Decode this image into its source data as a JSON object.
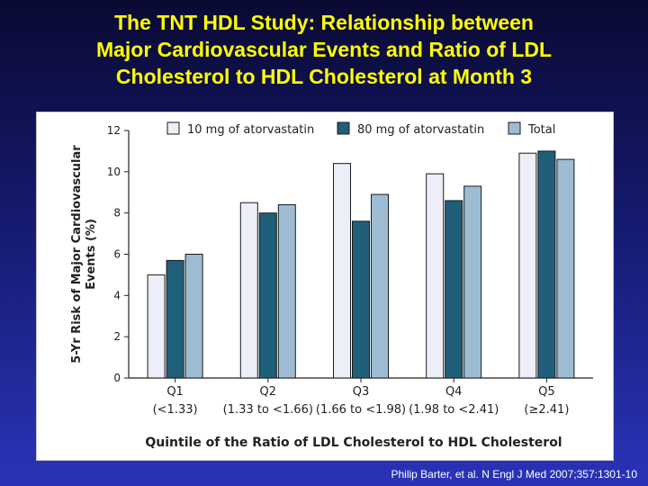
{
  "slide": {
    "title_lines": [
      "The TNT HDL Study: Relationship between",
      "Major Cardiovascular Events and Ratio of LDL",
      "Cholesterol to HDL Cholesterol at Month 3"
    ],
    "citation": "Philip Barter, et al. N Engl J Med 2007;357:1301-10"
  },
  "chart_data": {
    "type": "bar",
    "title": "",
    "xlabel": "Quintile of the Ratio of LDL Cholesterol to HDL Cholesterol",
    "ylabel_lines": [
      "5-Yr Risk of Major Cardiovascular",
      "Events (%)"
    ],
    "ylim": [
      0,
      12
    ],
    "yticks": [
      0,
      2,
      4,
      6,
      8,
      10,
      12
    ],
    "grid": false,
    "legend_position": "top",
    "categories": [
      {
        "name": "Q1",
        "range": "(<1.33)"
      },
      {
        "name": "Q2",
        "range": "(1.33 to <1.66)"
      },
      {
        "name": "Q3",
        "range": "(1.66 to <1.98)"
      },
      {
        "name": "Q4",
        "range": "(1.98 to <2.41)"
      },
      {
        "name": "Q5",
        "range": "(≥2.41)"
      }
    ],
    "series": [
      {
        "name": "10 mg of atorvastatin",
        "color": "#eceef8",
        "values": [
          5.0,
          8.5,
          10.4,
          9.9,
          10.9
        ]
      },
      {
        "name": "80 mg of atorvastatin",
        "color": "#1f5f7a",
        "values": [
          5.7,
          8.0,
          7.6,
          8.6,
          11.0
        ]
      },
      {
        "name": "Total",
        "color": "#9dbcd4",
        "values": [
          6.0,
          8.4,
          8.9,
          9.3,
          10.6
        ]
      }
    ]
  }
}
